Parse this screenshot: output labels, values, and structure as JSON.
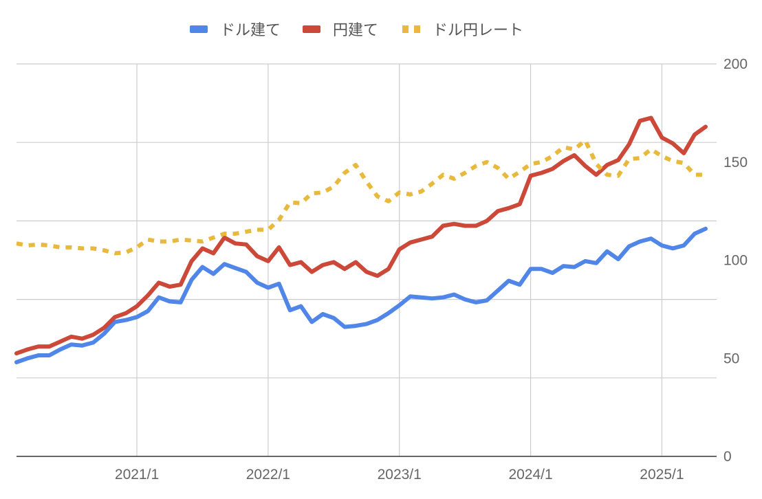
{
  "chart_data": {
    "type": "line",
    "x_ticks": [
      "2021/1",
      "2022/1",
      "2023/1",
      "2024/1",
      "2025/1"
    ],
    "x_range": [
      2020.083,
      2025.417
    ],
    "y_ticks": [
      0,
      50,
      100,
      150,
      200
    ],
    "ylim": [
      0,
      200
    ],
    "y_axis_position": "right",
    "grid": true,
    "legend_position": "top",
    "series": [
      {
        "name": "ドル建て",
        "color": "#5086e8",
        "style": "solid",
        "points": [
          [
            2020.083,
            48
          ],
          [
            2020.167,
            50
          ],
          [
            2020.25,
            51.5
          ],
          [
            2020.333,
            51.5
          ],
          [
            2020.417,
            54.5
          ],
          [
            2020.5,
            57
          ],
          [
            2020.583,
            56.5
          ],
          [
            2020.667,
            58
          ],
          [
            2020.75,
            62.5
          ],
          [
            2020.833,
            68.5
          ],
          [
            2020.917,
            69.5
          ],
          [
            2021.0,
            71
          ],
          [
            2021.083,
            74
          ],
          [
            2021.167,
            81
          ],
          [
            2021.25,
            79
          ],
          [
            2021.333,
            78.5
          ],
          [
            2021.417,
            90
          ],
          [
            2021.5,
            96.5
          ],
          [
            2021.583,
            93
          ],
          [
            2021.667,
            98
          ],
          [
            2021.75,
            96
          ],
          [
            2021.833,
            94
          ],
          [
            2021.917,
            88.5
          ],
          [
            2022.0,
            86
          ],
          [
            2022.083,
            88
          ],
          [
            2022.167,
            74.5
          ],
          [
            2022.25,
            76.5
          ],
          [
            2022.333,
            68.5
          ],
          [
            2022.417,
            72.5
          ],
          [
            2022.5,
            70.5
          ],
          [
            2022.583,
            66
          ],
          [
            2022.667,
            66.5
          ],
          [
            2022.75,
            67.5
          ],
          [
            2022.833,
            69.5
          ],
          [
            2022.917,
            73
          ],
          [
            2023.0,
            77
          ],
          [
            2023.083,
            81.5
          ],
          [
            2023.167,
            81
          ],
          [
            2023.25,
            80.5
          ],
          [
            2023.333,
            81
          ],
          [
            2023.417,
            82.5
          ],
          [
            2023.5,
            80
          ],
          [
            2023.583,
            78.5
          ],
          [
            2023.667,
            79.5
          ],
          [
            2023.75,
            84.5
          ],
          [
            2023.833,
            89.5
          ],
          [
            2023.917,
            87.5
          ],
          [
            2024.0,
            95.5
          ],
          [
            2024.083,
            95.5
          ],
          [
            2024.167,
            93.5
          ],
          [
            2024.25,
            97
          ],
          [
            2024.333,
            96.5
          ],
          [
            2024.417,
            99.5
          ],
          [
            2024.5,
            98.5
          ],
          [
            2024.583,
            104.5
          ],
          [
            2024.667,
            100.5
          ],
          [
            2024.75,
            107
          ],
          [
            2024.833,
            109.5
          ],
          [
            2024.917,
            111
          ],
          [
            2025.0,
            107.5
          ],
          [
            2025.083,
            106
          ],
          [
            2025.167,
            107.5
          ],
          [
            2025.25,
            113.5
          ],
          [
            2025.333,
            116
          ]
        ]
      },
      {
        "name": "円建て",
        "color": "#cc4838",
        "style": "solid",
        "points": [
          [
            2020.083,
            52.5
          ],
          [
            2020.167,
            54.5
          ],
          [
            2020.25,
            56
          ],
          [
            2020.333,
            56
          ],
          [
            2020.417,
            58.5
          ],
          [
            2020.5,
            61
          ],
          [
            2020.583,
            60
          ],
          [
            2020.667,
            62
          ],
          [
            2020.75,
            65.5
          ],
          [
            2020.833,
            71
          ],
          [
            2020.917,
            73
          ],
          [
            2021.0,
            76.5
          ],
          [
            2021.083,
            82
          ],
          [
            2021.167,
            88.5
          ],
          [
            2021.25,
            86.5
          ],
          [
            2021.333,
            87.5
          ],
          [
            2021.417,
            99.5
          ],
          [
            2021.5,
            106
          ],
          [
            2021.583,
            103.5
          ],
          [
            2021.667,
            111.5
          ],
          [
            2021.75,
            108.5
          ],
          [
            2021.833,
            108
          ],
          [
            2021.917,
            102
          ],
          [
            2022.0,
            99.5
          ],
          [
            2022.083,
            106.5
          ],
          [
            2022.167,
            97.5
          ],
          [
            2022.25,
            99
          ],
          [
            2022.333,
            94
          ],
          [
            2022.417,
            97.5
          ],
          [
            2022.5,
            99
          ],
          [
            2022.583,
            95.5
          ],
          [
            2022.667,
            99
          ],
          [
            2022.75,
            94
          ],
          [
            2022.833,
            92
          ],
          [
            2022.917,
            95.5
          ],
          [
            2023.0,
            105.5
          ],
          [
            2023.083,
            109
          ],
          [
            2023.167,
            110.5
          ],
          [
            2023.25,
            112
          ],
          [
            2023.333,
            117.5
          ],
          [
            2023.417,
            118.5
          ],
          [
            2023.5,
            117.5
          ],
          [
            2023.583,
            117.5
          ],
          [
            2023.667,
            120
          ],
          [
            2023.75,
            125
          ],
          [
            2023.833,
            126.5
          ],
          [
            2023.917,
            128.5
          ],
          [
            2024.0,
            143
          ],
          [
            2024.083,
            144.5
          ],
          [
            2024.167,
            146.5
          ],
          [
            2024.25,
            150.5
          ],
          [
            2024.333,
            153.5
          ],
          [
            2024.417,
            148
          ],
          [
            2024.5,
            143.5
          ],
          [
            2024.583,
            148.5
          ],
          [
            2024.667,
            151
          ],
          [
            2024.75,
            159
          ],
          [
            2024.833,
            171
          ],
          [
            2024.917,
            172.5
          ],
          [
            2025.0,
            162.5
          ],
          [
            2025.083,
            159.5
          ],
          [
            2025.167,
            154.5
          ],
          [
            2025.25,
            164
          ],
          [
            2025.333,
            168
          ]
        ]
      },
      {
        "name": "ドル円レート",
        "color": "#e8b93c",
        "style": "dotted",
        "points": [
          [
            2020.083,
            108.5
          ],
          [
            2020.167,
            107.5
          ],
          [
            2020.25,
            108
          ],
          [
            2020.333,
            107.5
          ],
          [
            2020.417,
            106.5
          ],
          [
            2020.5,
            106.5
          ],
          [
            2020.583,
            106
          ],
          [
            2020.667,
            106
          ],
          [
            2020.75,
            105
          ],
          [
            2020.833,
            103.5
          ],
          [
            2020.917,
            104
          ],
          [
            2021.0,
            106.5
          ],
          [
            2021.083,
            110.5
          ],
          [
            2021.167,
            109.5
          ],
          [
            2021.25,
            109.5
          ],
          [
            2021.333,
            110.5
          ],
          [
            2021.417,
            110
          ],
          [
            2021.5,
            109.5
          ],
          [
            2021.583,
            111.5
          ],
          [
            2021.667,
            113.5
          ],
          [
            2021.75,
            113.5
          ],
          [
            2021.833,
            114.5
          ],
          [
            2021.917,
            115.5
          ],
          [
            2022.0,
            115.5
          ],
          [
            2022.083,
            120.5
          ],
          [
            2022.167,
            129.5
          ],
          [
            2022.25,
            129
          ],
          [
            2022.333,
            134
          ],
          [
            2022.417,
            134.5
          ],
          [
            2022.5,
            137.5
          ],
          [
            2022.583,
            144.5
          ],
          [
            2022.667,
            148.5
          ],
          [
            2022.75,
            140
          ],
          [
            2022.833,
            132.5
          ],
          [
            2022.917,
            130
          ],
          [
            2023.0,
            134.5
          ],
          [
            2023.083,
            133.5
          ],
          [
            2023.167,
            135
          ],
          [
            2023.25,
            139
          ],
          [
            2023.333,
            143.5
          ],
          [
            2023.417,
            141.5
          ],
          [
            2023.5,
            144.5
          ],
          [
            2023.583,
            148
          ],
          [
            2023.667,
            150
          ],
          [
            2023.75,
            147
          ],
          [
            2023.833,
            141.5
          ],
          [
            2023.917,
            145
          ],
          [
            2024.0,
            149
          ],
          [
            2024.083,
            150
          ],
          [
            2024.167,
            153
          ],
          [
            2024.25,
            157.5
          ],
          [
            2024.333,
            156.5
          ],
          [
            2024.417,
            161
          ],
          [
            2024.5,
            149
          ],
          [
            2024.583,
            143.5
          ],
          [
            2024.667,
            143
          ],
          [
            2024.75,
            151.5
          ],
          [
            2024.833,
            152
          ],
          [
            2024.917,
            156.5
          ],
          [
            2025.0,
            153
          ],
          [
            2025.083,
            150.5
          ],
          [
            2025.167,
            149.5
          ],
          [
            2025.25,
            143.5
          ],
          [
            2025.333,
            143.5
          ]
        ]
      }
    ]
  }
}
